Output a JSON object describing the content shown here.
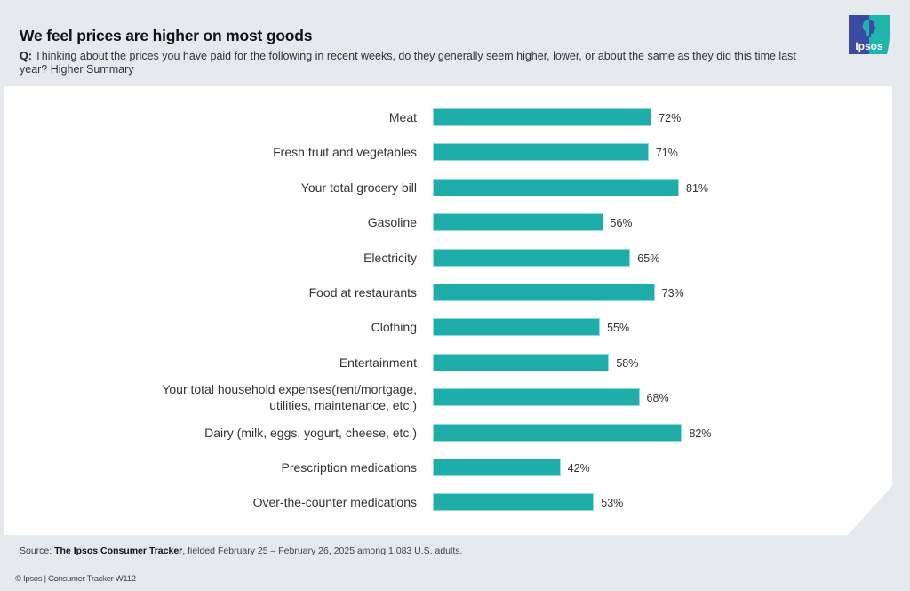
{
  "header": {
    "title": "We feel prices are higher on most goods",
    "question_prefix": "Q:",
    "question_text": "Thinking about the prices you have paid for the following in recent weeks, do they generally seem higher, lower, or about the same as they did this time last year? Higher Summary",
    "logo_text": "Ipsos"
  },
  "colors": {
    "bar": "#1fada9",
    "logo_blue": "#3a4aa5",
    "logo_teal": "#1fb5aa",
    "background": "#e6e9ee"
  },
  "chart_data": {
    "type": "bar",
    "orientation": "horizontal",
    "title": "We feel prices are higher on most goods",
    "xlabel": "",
    "ylabel": "",
    "xlim": [
      0,
      100
    ],
    "grid": false,
    "value_suffix": "%",
    "categories": [
      "Meat",
      "Fresh fruit and vegetables",
      "Your total grocery bill",
      "Gasoline",
      "Electricity",
      "Food at restaurants",
      "Clothing",
      "Entertainment",
      "Your total household expenses(rent/mortgage,\nutilities, maintenance, etc.)",
      "Dairy (milk, eggs, yogurt, cheese, etc.)",
      "Prescription medications",
      "Over-the-counter medications"
    ],
    "values": [
      72,
      71,
      81,
      56,
      65,
      73,
      55,
      58,
      68,
      82,
      42,
      53
    ],
    "value_labels": [
      "72%",
      "71%",
      "81%",
      "56%",
      "65%",
      "73%",
      "55%",
      "58%",
      "68%",
      "82%",
      "42%",
      "53%"
    ]
  },
  "footer": {
    "source_prefix": "Source: ",
    "source_name": "The Ipsos Consumer Tracker",
    "source_rest": ", fielded February 25 – February 26, 2025 among 1,083 U.S. adults.",
    "copyright": "© Ipsos | Consumer Tracker W112"
  }
}
